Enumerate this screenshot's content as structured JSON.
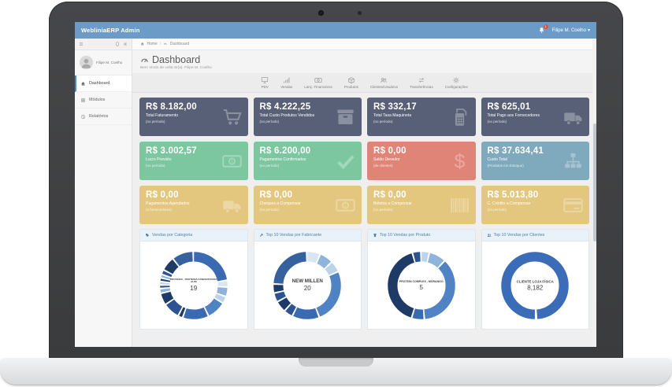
{
  "navbar": {
    "brand": "WebliniaERP Admin",
    "user": "Filipe M. Coelho",
    "notification_count": "1",
    "caret": "▾"
  },
  "breadcrumb": {
    "home": "Home",
    "separator": "/",
    "current": "Dashboard"
  },
  "sidebar": {
    "user_name": "Filipe M. Coelho",
    "items": [
      {
        "label": "Dashboard",
        "active": true
      },
      {
        "label": "Módulos",
        "active": false
      },
      {
        "label": "Relatórios",
        "active": false
      }
    ]
  },
  "page": {
    "title": "Dashboard",
    "subtitle": "Bem Vindo de volta Sr(a). Filipe M. Coelho"
  },
  "toolbar": {
    "items": [
      {
        "label": "PDV"
      },
      {
        "label": "Vendas"
      },
      {
        "label": "Lanç. Financeiros"
      },
      {
        "label": "Produtos"
      },
      {
        "label": "Clientes/Usuários"
      },
      {
        "label": "Transferências"
      },
      {
        "label": "Configurações"
      }
    ]
  },
  "cards": [
    {
      "value": "R$ 8.182,00",
      "label": "Total Faturamento",
      "sub": "(no período)",
      "icon": "cart",
      "color": "#576076"
    },
    {
      "value": "R$ 4.222,25",
      "label": "Total Custo Produtos Vendidos",
      "sub": "(no período)",
      "icon": "box",
      "color": "#576076"
    },
    {
      "value": "R$ 332,17",
      "label": "Total Taxa Maquineta",
      "sub": "(no período)",
      "icon": "card-machine",
      "color": "#576076"
    },
    {
      "value": "R$ 625,01",
      "label": "Total Pago aos Fornecedores",
      "sub": "(no período)",
      "icon": "truck",
      "color": "#576076"
    },
    {
      "value": "R$ 3.002,57",
      "label": "Lucro Previsto",
      "sub": "(no período)",
      "icon": "money-bill",
      "color": "#7cc7a0"
    },
    {
      "value": "R$ 6.200,00",
      "label": "Pagamentos Confirmados",
      "sub": "(no período)",
      "icon": "check",
      "color": "#7cc7a0"
    },
    {
      "value": "R$ 0,00",
      "label": "Saldo Devedor",
      "sub": "(de clientes)",
      "icon": "dollar",
      "color": "#e08478"
    },
    {
      "value": "R$ 37.634,41",
      "label": "Custo Total",
      "sub": "(Produtos em Estoque)",
      "icon": "sitemap",
      "color": "#7fa9bd"
    },
    {
      "value": "R$ 0,00",
      "label": "Pagamentos Agendados",
      "sub": "(a fornecedores)",
      "icon": "truck",
      "color": "#e4c77e"
    },
    {
      "value": "R$ 0,00",
      "label": "Cheques a Compensar",
      "sub": "(no período)",
      "icon": "money-bill",
      "color": "#e4c77e"
    },
    {
      "value": "R$ 0,00",
      "label": "Boletos a Compensar",
      "sub": "(no período)",
      "icon": "barcode",
      "color": "#e4c77e"
    },
    {
      "value": "R$ 5.013,80",
      "label": "C. Crédito a Compensar",
      "sub": "(no período)",
      "icon": "credit-card",
      "color": "#e4c77e"
    }
  ],
  "chart_data": [
    {
      "type": "donut",
      "title": "Vendas por Categoria",
      "center_label": "PROTEINA - PROTEINA CONCENTRADA ALIM",
      "center_value": "19",
      "segments": [
        {
          "value": 20,
          "color": "#3a6ab2"
        },
        {
          "value": 3,
          "color": "#d8e5f3"
        },
        {
          "value": 4,
          "color": "#8fb4dc"
        },
        {
          "value": 3,
          "color": "#bcd3ea"
        },
        {
          "value": 8,
          "color": "#4f83c3"
        },
        {
          "value": 11,
          "color": "#3a6ab2"
        },
        {
          "value": 2,
          "color": "#1e3a66"
        },
        {
          "value": 7,
          "color": "#2c5291"
        },
        {
          "value": 5,
          "color": "#1e3a66"
        },
        {
          "value": 2,
          "color": "#8fb4dc"
        },
        {
          "value": 1.5,
          "color": "#2c5291"
        },
        {
          "value": 1.5,
          "color": "#bcd3ea"
        },
        {
          "value": 1.5,
          "color": "#1e3a66"
        },
        {
          "value": 1.5,
          "color": "#8fb4dc"
        },
        {
          "value": 2,
          "color": "#2c5291"
        },
        {
          "value": 6,
          "color": "#1e3a66"
        },
        {
          "value": 9,
          "color": "#35619f"
        }
      ]
    },
    {
      "type": "donut",
      "title": "Top 10 Vendas por Fabricante",
      "center_label": "NEW MILLEN",
      "center_value": "20",
      "segments": [
        {
          "value": 6,
          "color": "#d8e5f3"
        },
        {
          "value": 6,
          "color": "#8fb4dc"
        },
        {
          "value": 5,
          "color": "#bcd3ea"
        },
        {
          "value": 24,
          "color": "#4f83c3"
        },
        {
          "value": 12,
          "color": "#3a6ab2"
        },
        {
          "value": 4,
          "color": "#2c5291"
        },
        {
          "value": 5,
          "color": "#1e3a66"
        },
        {
          "value": 4,
          "color": "#2c5291"
        },
        {
          "value": 4,
          "color": "#1e3a66"
        },
        {
          "value": 22,
          "color": "#35619f"
        }
      ]
    },
    {
      "type": "donut",
      "title": "Top 10 Vendas por Produto",
      "center_label": "PROTEIN COMPLEX - MORANGO",
      "center_value": "5",
      "segments": [
        {
          "value": 4,
          "color": "#bcd3ea"
        },
        {
          "value": 8,
          "color": "#8fb4dc"
        },
        {
          "value": 36,
          "color": "#4f83c3"
        },
        {
          "value": 6,
          "color": "#3a6ab2"
        },
        {
          "value": 40,
          "color": "#1e3a66"
        },
        {
          "value": 4,
          "color": "#2c5291"
        }
      ]
    },
    {
      "type": "donut",
      "title": "Top 10 Vendas por Clientes",
      "center_label": "CLIENTE LOJA FÍSICA",
      "center_value": "8,182",
      "start_deg": 90,
      "segments": [
        {
          "value": 100,
          "color": "#3a6cb7"
        }
      ]
    }
  ],
  "colors": {
    "navbar_blue": "#6d9bc7",
    "accent_blue": "#4d86c4",
    "card_slate": "#576076",
    "card_green": "#7cc7a0",
    "card_red": "#e08478",
    "card_teal": "#7fa9bd",
    "card_yellow": "#e4c77e",
    "panel_header_bg": "#e9f2f9",
    "panel_header_text": "#4d7fb2",
    "badge_red": "#e74c3c"
  }
}
